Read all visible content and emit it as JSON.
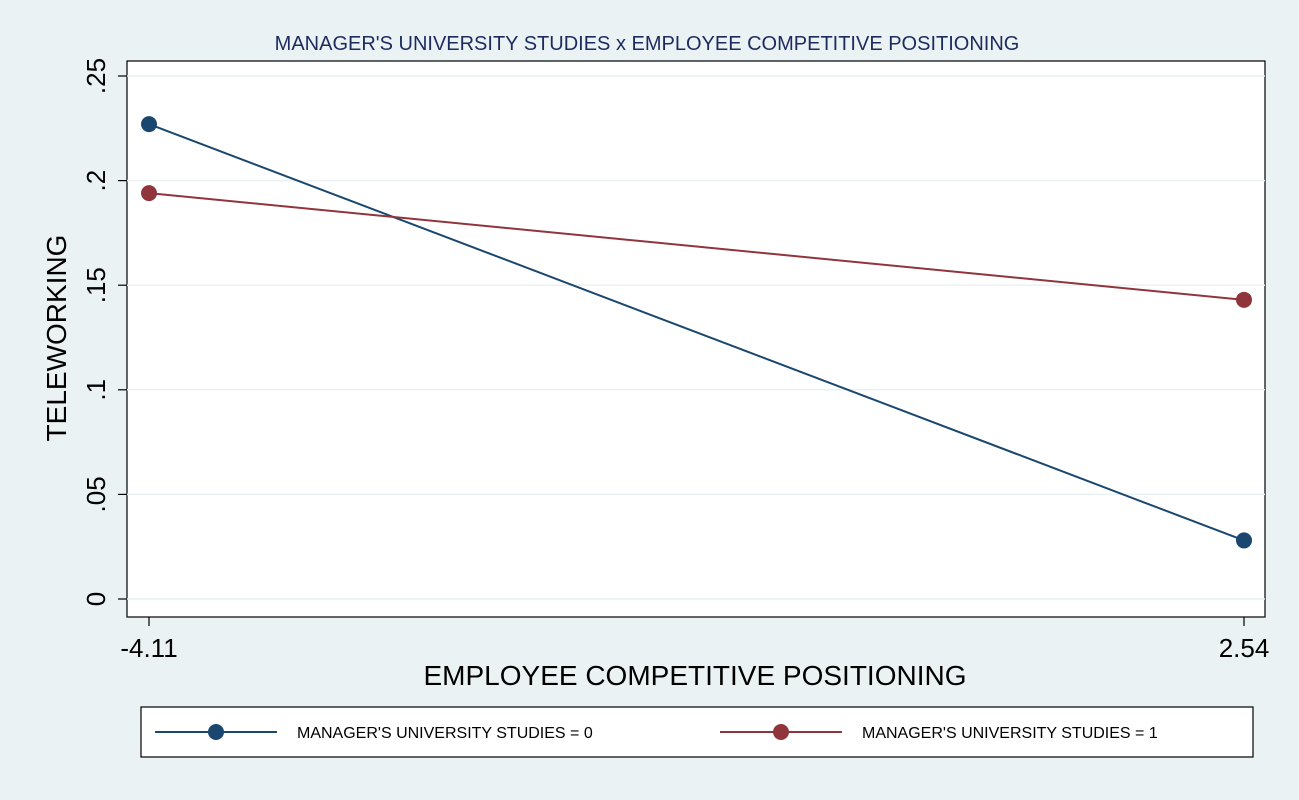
{
  "chart_data": {
    "type": "line",
    "title": "MANAGER'S UNIVERSITY STUDIES x EMPLOYEE COMPETITIVE POSITIONING",
    "xlabel": "EMPLOYEE COMPETITIVE POSITIONING",
    "ylabel": "TELEWORKING",
    "x": [
      -4.11,
      2.54
    ],
    "x_tick_labels": [
      "-4.11",
      "2.54"
    ],
    "y_ticks": [
      0,
      0.05,
      0.1,
      0.15,
      0.2,
      0.25
    ],
    "y_tick_labels": [
      "0",
      ".05",
      ".1",
      ".15",
      ".2",
      ".25"
    ],
    "ylim": [
      0,
      0.25
    ],
    "grid": true,
    "legend_position": "bottom",
    "series": [
      {
        "name": "MANAGER'S UNIVERSITY STUDIES = 0",
        "values": [
          0.227,
          0.028
        ],
        "color": "#1a476f"
      },
      {
        "name": "MANAGER'S UNIVERSITY STUDIES = 1",
        "values": [
          0.194,
          0.143
        ],
        "color": "#90353b"
      }
    ]
  },
  "colors": {
    "background": "#eaf2f3",
    "plot_background": "#ffffff",
    "grid": "#eaf2f3",
    "axis": "#000000",
    "title": "#1e2b5f"
  }
}
